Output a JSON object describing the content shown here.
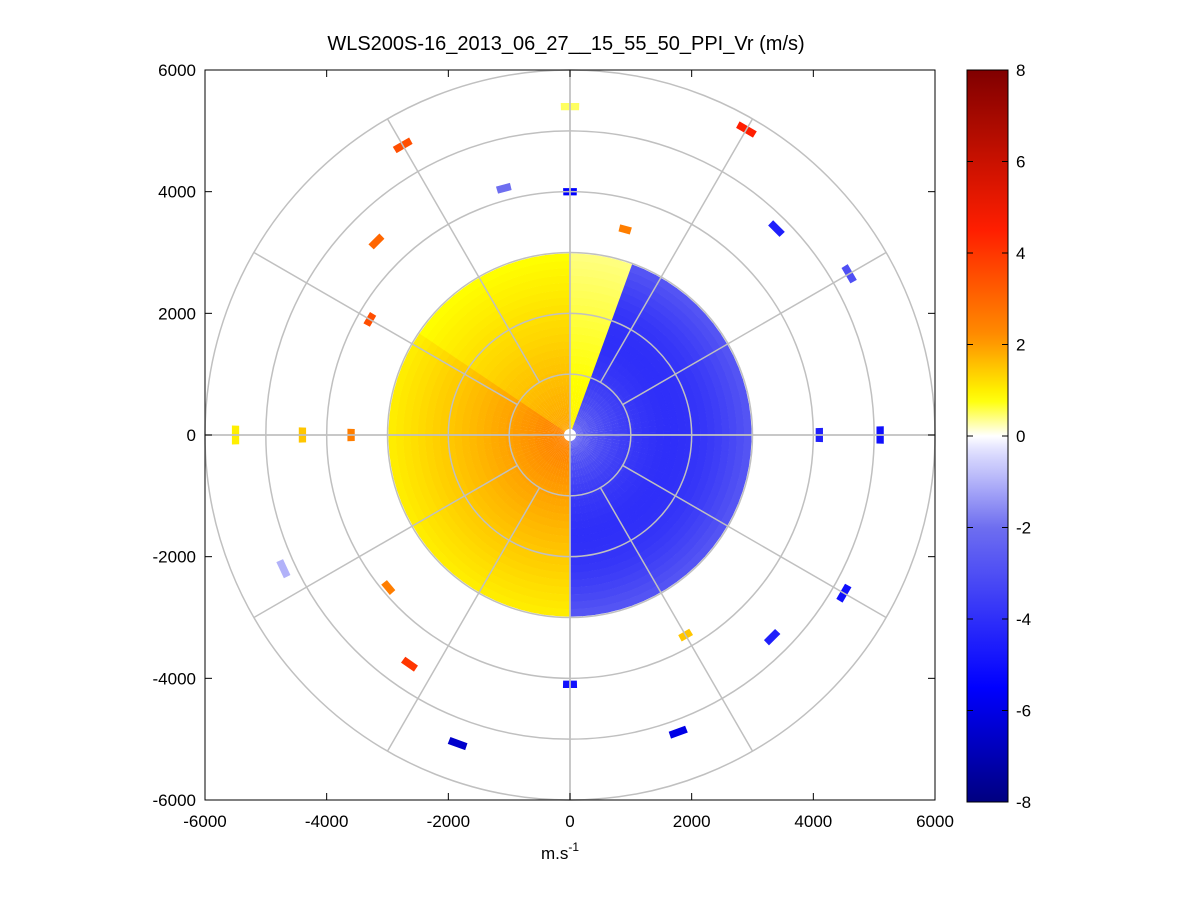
{
  "chart_data": {
    "type": "heatmap",
    "subtype": "polar-ppi",
    "title": "WLS200S-16_2013_06_27__15_55_50_PPI_Vr (m/s)",
    "xlabel": "m.s",
    "xlabel_superscript": "-1",
    "ylabel": "",
    "xlim": [
      -6000,
      6000
    ],
    "ylim": [
      -6000,
      6000
    ],
    "xticks": [
      "-6000",
      "-4000",
      "-2000",
      "0",
      "2000",
      "4000",
      "6000"
    ],
    "yticks": [
      "6000",
      "4000",
      "2000",
      "0",
      "-2000",
      "-4000",
      "-6000"
    ],
    "xtick_values": [
      -6000,
      -4000,
      -2000,
      0,
      2000,
      4000,
      6000
    ],
    "ytick_values": [
      6000,
      4000,
      2000,
      0,
      -2000,
      -4000,
      -6000
    ],
    "range_rings_m": [
      1000,
      2000,
      3000,
      4000,
      5000,
      6000
    ],
    "azimuth_spokes_deg": [
      0,
      30,
      60,
      90,
      120,
      150,
      180,
      210,
      240,
      270,
      300,
      330
    ],
    "colorbar": {
      "min": -8,
      "max": 8,
      "ticks": [
        "8",
        "6",
        "4",
        "2",
        "0",
        "-2",
        "-4",
        "-6",
        "-8"
      ],
      "tick_values": [
        8,
        6,
        4,
        2,
        0,
        -2,
        -4,
        -6,
        -8
      ]
    },
    "field": {
      "units": "m/s",
      "range_max_dense_m": 2900,
      "near_field": [
        {
          "azimuth_from_deg": 180,
          "azimuth_to_deg": 360,
          "velocity": 2.0
        },
        {
          "azimuth_from_deg": 0,
          "azimuth_to_deg": 20,
          "velocity": 1.0
        },
        {
          "azimuth_from_deg": 20,
          "azimuth_to_deg": 180,
          "velocity": -4.0
        }
      ],
      "scattered_segments": [
        {
          "azimuth_deg": 270,
          "range_m": 5500,
          "velocity": 1.0
        },
        {
          "azimuth_deg": 270,
          "range_m": 4400,
          "velocity": 1.5
        },
        {
          "azimuth_deg": 270,
          "range_m": 3600,
          "velocity": 2.5
        },
        {
          "azimuth_deg": 90,
          "range_m": 5100,
          "velocity": -5.0
        },
        {
          "azimuth_deg": 90,
          "range_m": 4100,
          "velocity": -4.5
        },
        {
          "azimuth_deg": 60,
          "range_m": 5300,
          "velocity": -3.0
        },
        {
          "azimuth_deg": 45,
          "range_m": 4800,
          "velocity": -4.5
        },
        {
          "azimuth_deg": 30,
          "range_m": 5800,
          "velocity": 4.5
        },
        {
          "azimuth_deg": 330,
          "range_m": 5500,
          "velocity": 3.5
        },
        {
          "azimuth_deg": 315,
          "range_m": 4500,
          "velocity": 3.0
        },
        {
          "azimuth_deg": 300,
          "range_m": 3800,
          "velocity": 3.5
        },
        {
          "azimuth_deg": 120,
          "range_m": 5200,
          "velocity": -5.0
        },
        {
          "azimuth_deg": 135,
          "range_m": 4700,
          "velocity": -4.5
        },
        {
          "azimuth_deg": 150,
          "range_m": 3800,
          "velocity": 1.5
        },
        {
          "azimuth_deg": 160,
          "range_m": 5200,
          "velocity": -6.0
        },
        {
          "azimuth_deg": 180,
          "range_m": 4100,
          "velocity": -5.0
        },
        {
          "azimuth_deg": 200,
          "range_m": 5400,
          "velocity": -6.5
        },
        {
          "azimuth_deg": 215,
          "range_m": 4600,
          "velocity": 4.0
        },
        {
          "azimuth_deg": 230,
          "range_m": 3900,
          "velocity": 2.5
        },
        {
          "azimuth_deg": 245,
          "range_m": 5200,
          "velocity": -1.0
        },
        {
          "azimuth_deg": 0,
          "range_m": 4000,
          "velocity": -5.5
        },
        {
          "azimuth_deg": 0,
          "range_m": 5400,
          "velocity": 0.5
        },
        {
          "azimuth_deg": 15,
          "range_m": 3500,
          "velocity": 2.5
        },
        {
          "azimuth_deg": 345,
          "range_m": 4200,
          "velocity": -2.0
        }
      ]
    }
  }
}
